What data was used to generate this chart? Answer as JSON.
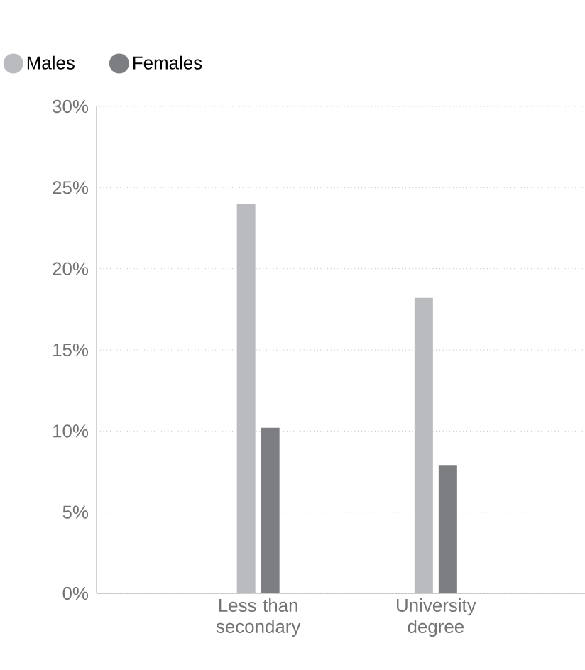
{
  "chart_data": {
    "type": "bar",
    "categories": [
      "Less than secondary",
      "University degree"
    ],
    "series": [
      {
        "name": "Males",
        "color": "#b9bbbe",
        "values": [
          24.0,
          18.2
        ]
      },
      {
        "name": "Females",
        "color": "#7c7e82",
        "values": [
          10.2,
          7.9
        ]
      }
    ],
    "ylim": [
      0,
      30
    ],
    "yticks": [
      {
        "value": 0,
        "label": "0%"
      },
      {
        "value": 5,
        "label": "5%"
      },
      {
        "value": 10,
        "label": "10%"
      },
      {
        "value": 15,
        "label": "15%"
      },
      {
        "value": 20,
        "label": "20%"
      },
      {
        "value": 25,
        "label": "25%"
      },
      {
        "value": 30,
        "label": "30%"
      }
    ],
    "grid": "y",
    "legend": "top left"
  }
}
